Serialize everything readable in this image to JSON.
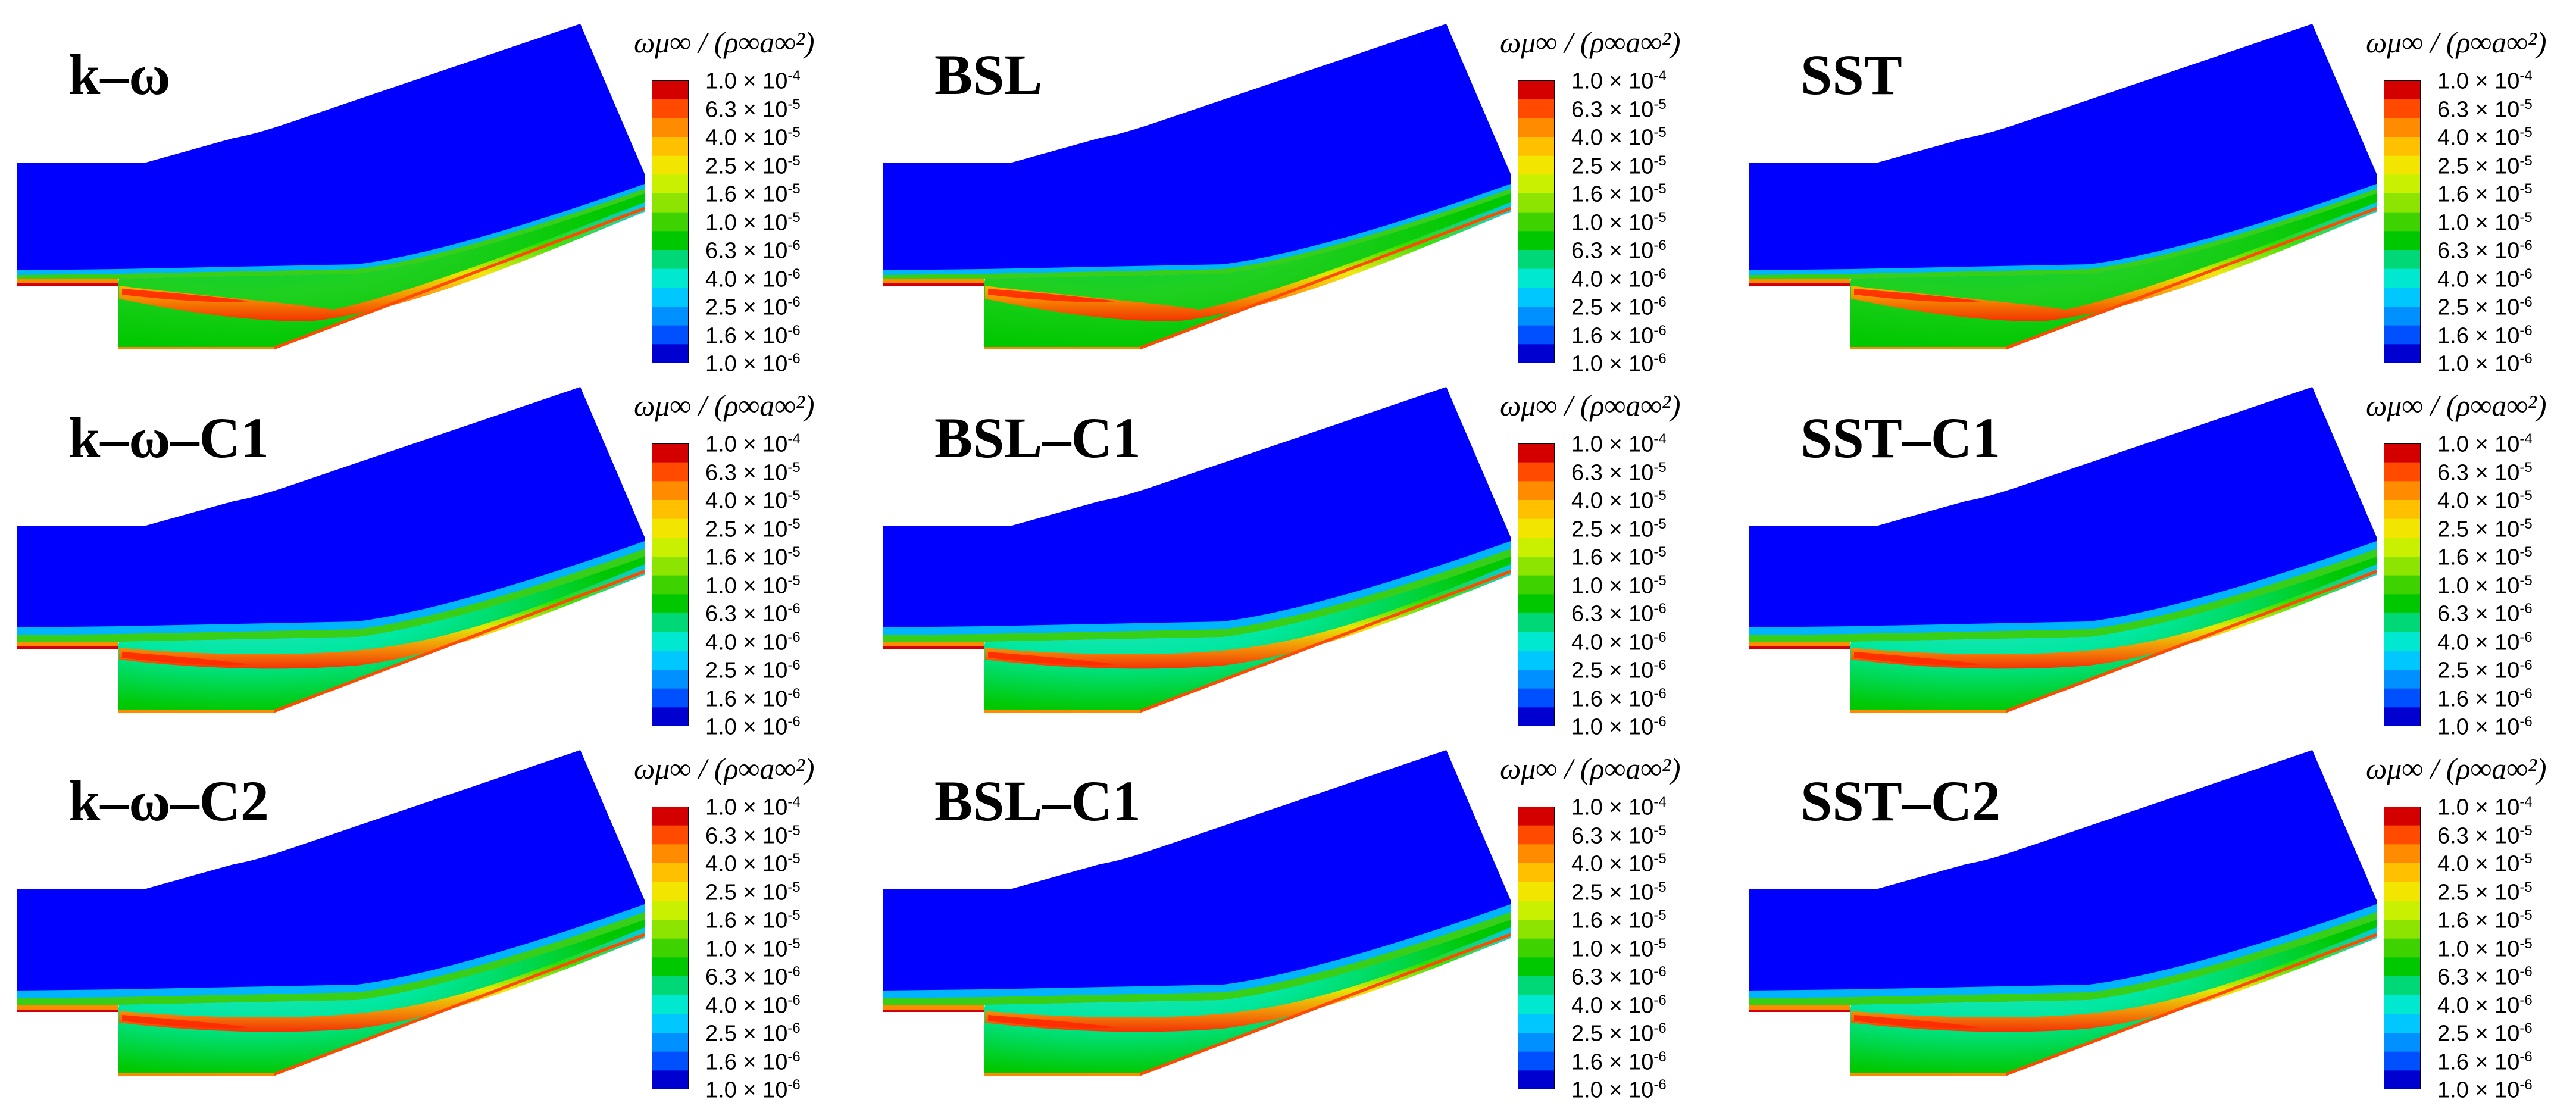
{
  "panels": [
    {
      "label": "k–ω",
      "variant": 0
    },
    {
      "label": "BSL",
      "variant": 1
    },
    {
      "label": "SST",
      "variant": 2
    },
    {
      "label": "k–ω–C1",
      "variant": 3
    },
    {
      "label": "BSL–C1",
      "variant": 4
    },
    {
      "label": "SST–C1",
      "variant": 5
    },
    {
      "label": "k–ω–C2",
      "variant": 6
    },
    {
      "label": "BSL–C1",
      "variant": 7
    },
    {
      "label": "SST–C2",
      "variant": 8
    }
  ],
  "legend": {
    "title": "ωμ∞ / (ρ∞a∞²)",
    "ticks": [
      {
        "mantissa": "1.0 × 10",
        "exp": "-4"
      },
      {
        "mantissa": "6.3 × 10",
        "exp": "-5"
      },
      {
        "mantissa": "4.0 × 10",
        "exp": "-5"
      },
      {
        "mantissa": "2.5 × 10",
        "exp": "-5"
      },
      {
        "mantissa": "1.6 × 10",
        "exp": "-5"
      },
      {
        "mantissa": "1.0 × 10",
        "exp": "-5"
      },
      {
        "mantissa": "6.3 × 10",
        "exp": "-6"
      },
      {
        "mantissa": "4.0 × 10",
        "exp": "-6"
      },
      {
        "mantissa": "2.5 × 10",
        "exp": "-6"
      },
      {
        "mantissa": "1.6 × 10",
        "exp": "-6"
      },
      {
        "mantissa": "1.0 × 10",
        "exp": "-6"
      }
    ],
    "colors": [
      "#d40000",
      "#ff4a00",
      "#ff8c00",
      "#ffc000",
      "#f2e600",
      "#c8f000",
      "#8ce400",
      "#3ed200",
      "#00c800",
      "#00d878",
      "#00e8d0",
      "#00c8ff",
      "#0090ff",
      "#0050ff",
      "#0000d0"
    ]
  }
}
